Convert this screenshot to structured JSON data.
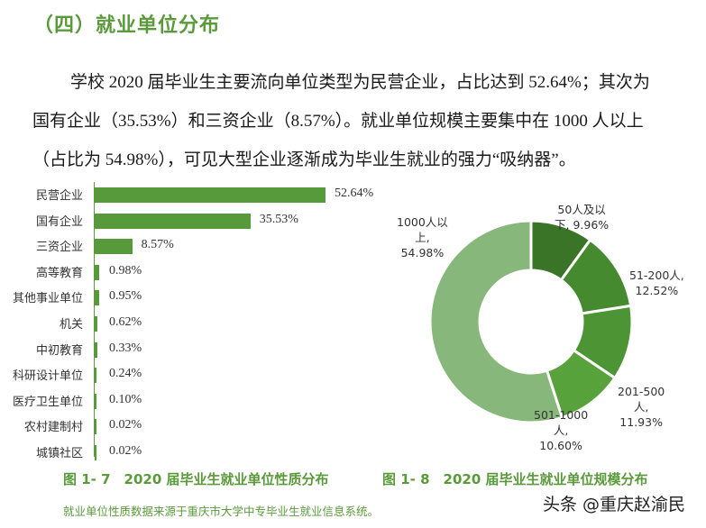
{
  "section_title": "（四）就业单位分布",
  "paragraph": {
    "line1": "学校 2020 届毕业生主要流向单位类型为民营企业，占比达到 52.64%；其次为",
    "line2": "国有企业（35.53%）和三资企业（8.57%）。就业单位规模主要集中在 1000 人以上",
    "line3": "（占比为 54.98%），可见大型企业逐渐成为毕业生就业的强力“吸纳器”。"
  },
  "captions": {
    "fig1": "图 1- 7　2020 届毕业生就业单位性质分布",
    "fig2": "图 1- 8　2020 届毕业生就业单位规模分布"
  },
  "source_note": "就业单位性质数据来源于重庆市大学中专毕业生就业信息系统。",
  "watermark": "头条 @重庆赵渝民",
  "colors": {
    "accent": "#5a9a3a",
    "bar": "#569a3c",
    "donut": [
      "#3a7426",
      "#468a30",
      "#4c9434",
      "#58a23c",
      "#87b77a"
    ]
  },
  "chart_data": [
    {
      "type": "bar",
      "orientation": "horizontal",
      "title": "图 1- 7　2020 届毕业生就业单位性质分布",
      "categories": [
        "民营企业",
        "国有企业",
        "三资企业",
        "高等教育",
        "其他事业单位",
        "机关",
        "中初教育",
        "科研设计单位",
        "医疗卫生单位",
        "农村建制村",
        "城镇社区"
      ],
      "values": [
        52.64,
        35.53,
        8.57,
        0.98,
        0.95,
        0.62,
        0.33,
        0.24,
        0.1,
        0.02,
        0.02
      ],
      "labels": [
        "52.64%",
        "35.53%",
        "8.57%",
        "0.98%",
        "0.95%",
        "0.62%",
        "0.33%",
        "0.24%",
        "0.10%",
        "0.02%",
        "0.02%"
      ],
      "xlabel": "",
      "ylabel": "",
      "grid": false,
      "legend": "none"
    },
    {
      "type": "pie",
      "donut": true,
      "title": "图 1- 8　2020 届毕业生就业单位规模分布",
      "categories": [
        "50人及以下",
        "51-200人",
        "201-500人",
        "501-1000人",
        "1000人以上"
      ],
      "values": [
        9.96,
        12.52,
        11.93,
        10.6,
        54.98
      ],
      "labels": [
        [
          "50人及以",
          "下, 9.96%"
        ],
        [
          "51-200人,",
          "12.52%"
        ],
        [
          "201-500",
          "人,",
          "11.93%"
        ],
        [
          "501-1000",
          "人,",
          "10.60%"
        ],
        [
          "1000人以",
          "上,",
          "54.98%"
        ]
      ],
      "legend": "none"
    }
  ]
}
